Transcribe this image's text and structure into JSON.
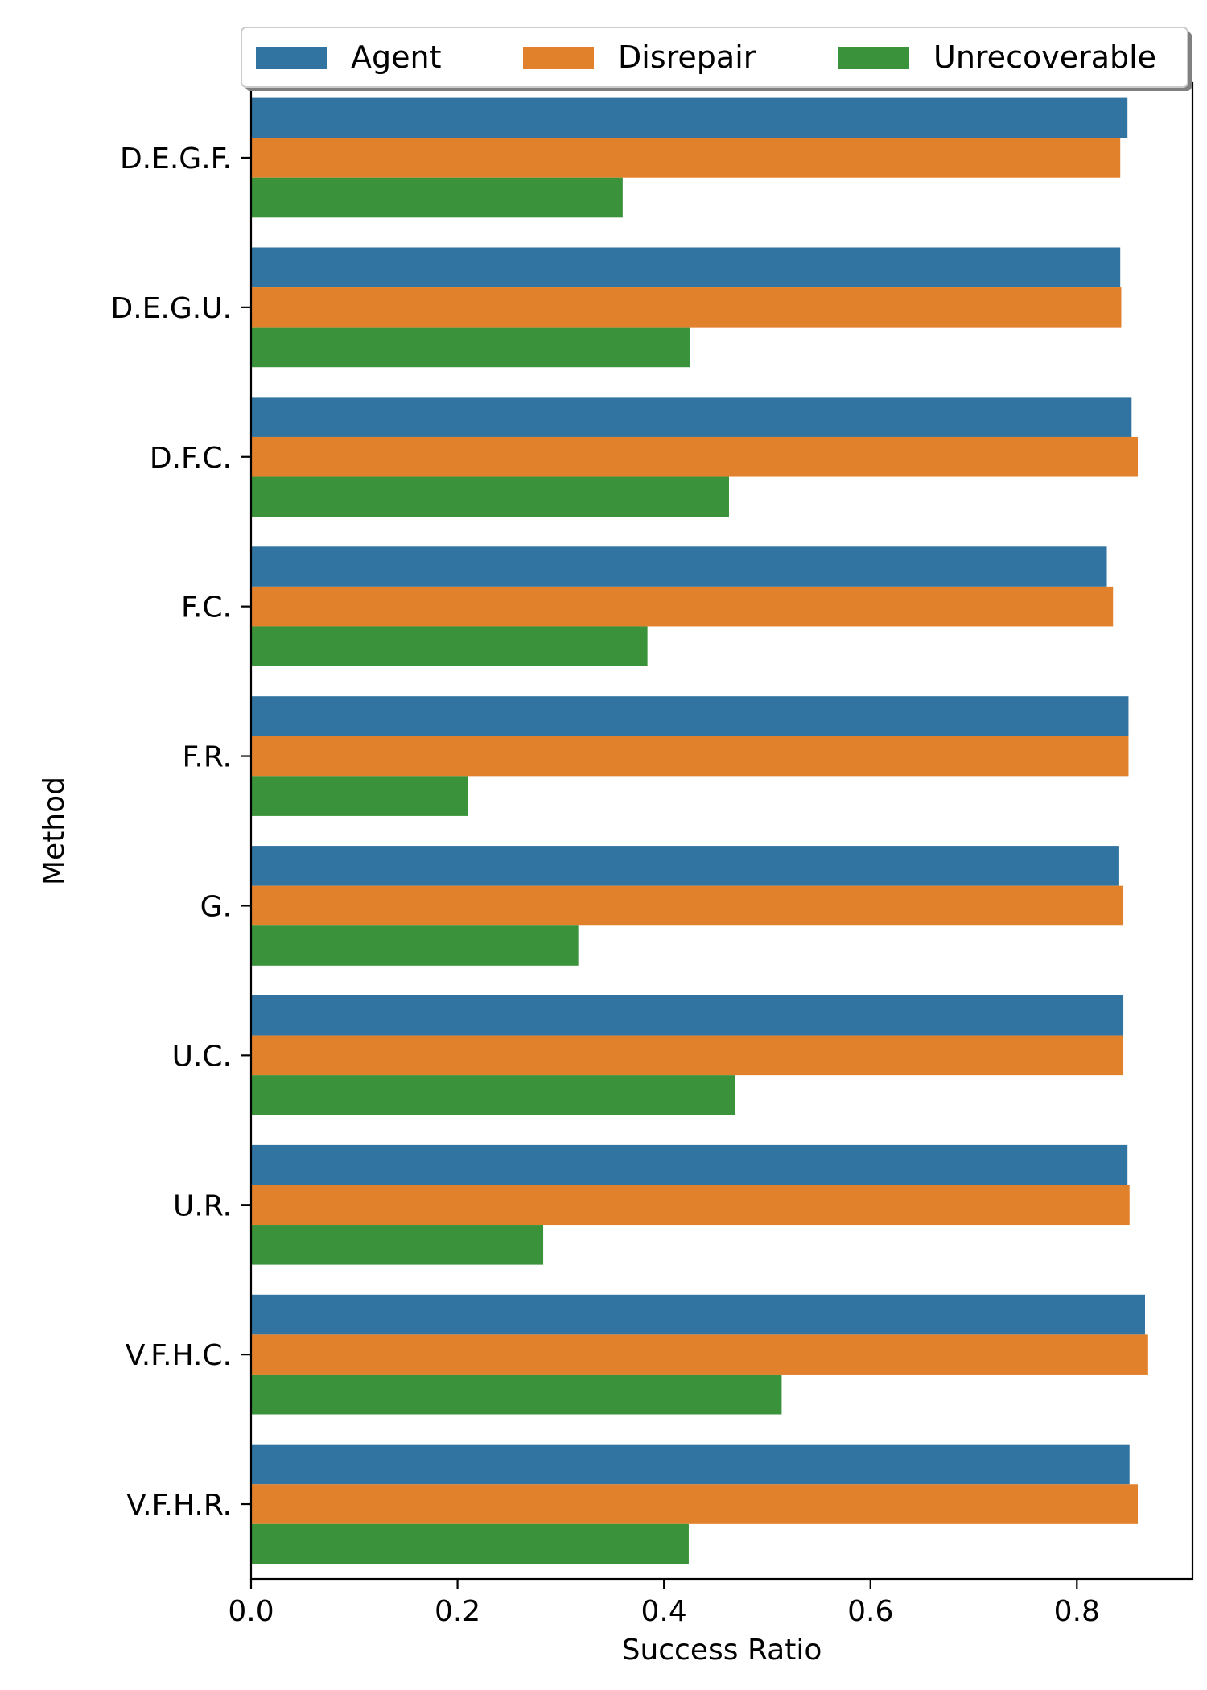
{
  "chart_data": {
    "type": "bar",
    "orientation": "horizontal",
    "categories": [
      "D.E.G.F.",
      "D.E.G.U.",
      "D.F.C.",
      "F.C.",
      "F.R.",
      "G.",
      "U.C.",
      "U.R.",
      "V.F.H.C.",
      "V.F.H.R."
    ],
    "series": [
      {
        "name": "Agent",
        "color": "#3274a1",
        "values": [
          0.849,
          0.842,
          0.853,
          0.829,
          0.85,
          0.841,
          0.845,
          0.849,
          0.866,
          0.851
        ]
      },
      {
        "name": "Disrepair",
        "color": "#e1812c",
        "values": [
          0.842,
          0.843,
          0.859,
          0.835,
          0.85,
          0.845,
          0.845,
          0.851,
          0.869,
          0.859
        ]
      },
      {
        "name": "Unrecoverable",
        "color": "#3a923a",
        "values": [
          0.36,
          0.425,
          0.463,
          0.384,
          0.21,
          0.317,
          0.469,
          0.283,
          0.514,
          0.424
        ]
      }
    ],
    "xlabel": "Success Ratio",
    "ylabel": "Method",
    "xlim": [
      0,
      0.912
    ],
    "xticks": [
      0.0,
      0.2,
      0.4,
      0.6,
      0.8
    ],
    "xtick_labels": [
      "0.0",
      "0.2",
      "0.4",
      "0.6",
      "0.8"
    ],
    "grid": false,
    "legend_position": "top"
  }
}
